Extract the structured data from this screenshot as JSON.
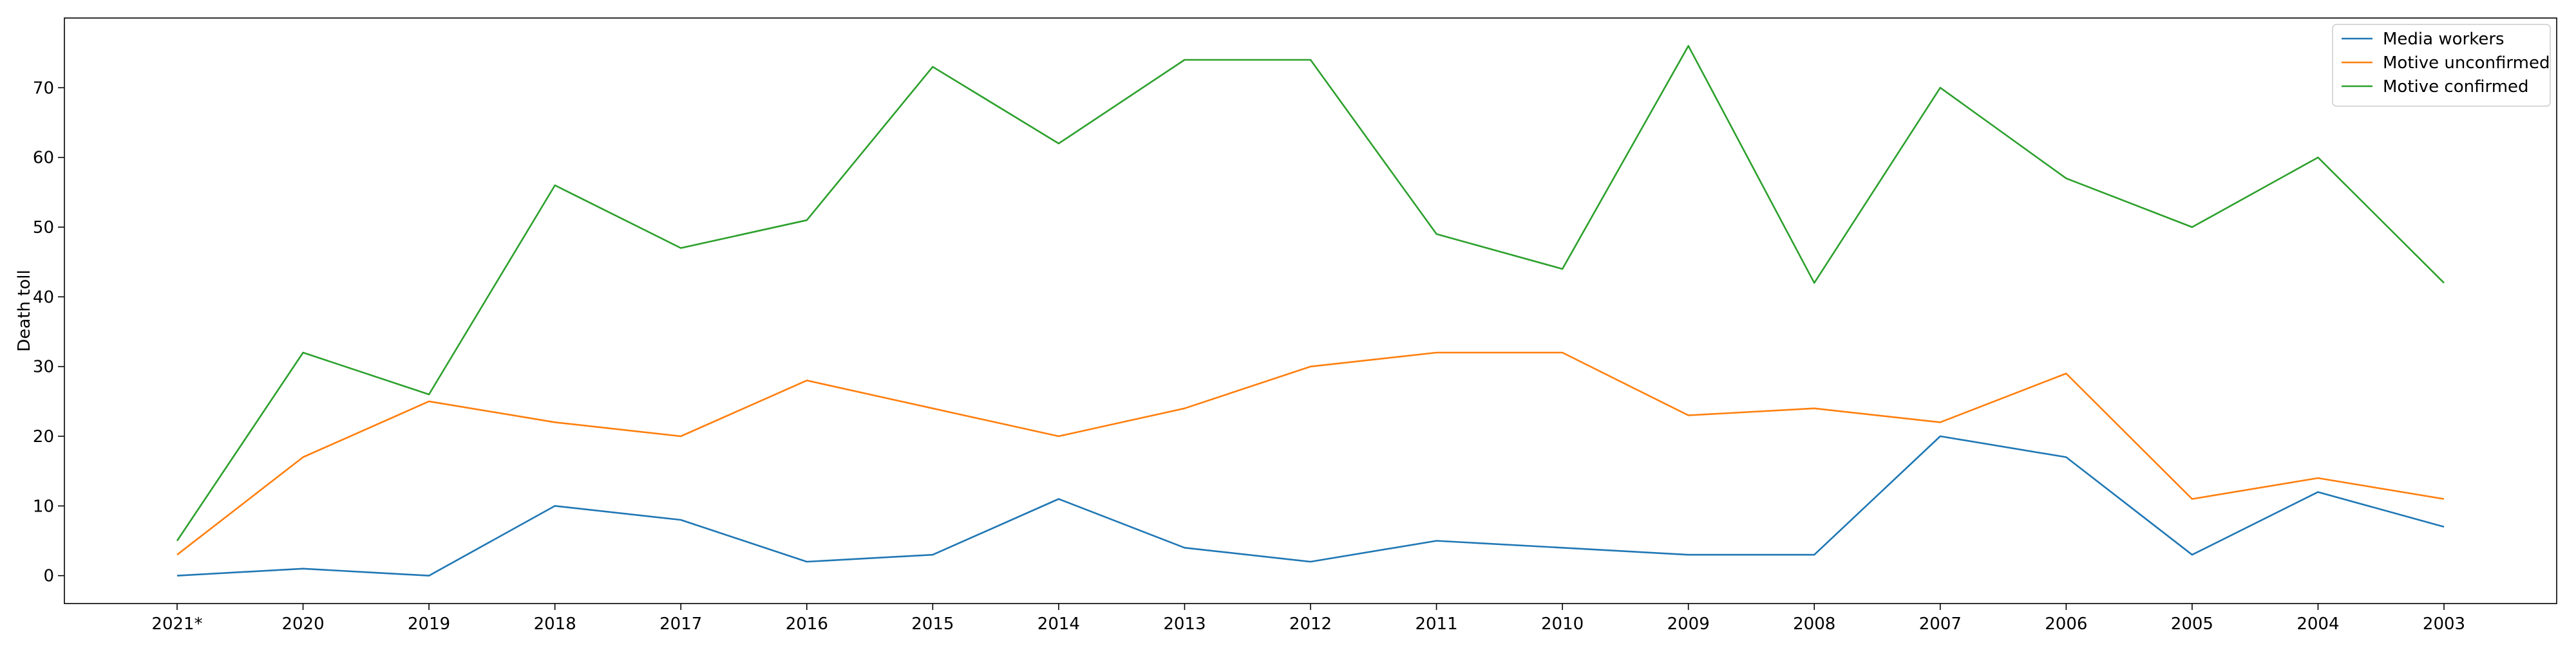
{
  "chart_data": {
    "type": "line",
    "title": "",
    "xlabel": "",
    "ylabel": "Death toll",
    "categories": [
      "2021*",
      "2020",
      "2019",
      "2018",
      "2017",
      "2016",
      "2015",
      "2014",
      "2013",
      "2012",
      "2011",
      "2010",
      "2009",
      "2008",
      "2007",
      "2006",
      "2005",
      "2004",
      "2003"
    ],
    "ylim": [
      -4,
      80
    ],
    "yticks": [
      0,
      10,
      20,
      30,
      40,
      50,
      60,
      70
    ],
    "grid": false,
    "legend_position": "top-right",
    "series": [
      {
        "name": "Media workers",
        "color": "#1f77b4",
        "values": [
          0,
          1,
          0,
          10,
          8,
          2,
          3,
          11,
          4,
          2,
          5,
          4,
          3,
          3,
          20,
          17,
          3,
          12,
          7
        ]
      },
      {
        "name": "Motive unconfirmed",
        "color": "#ff7f0e",
        "values": [
          3,
          17,
          25,
          22,
          20,
          28,
          24,
          20,
          24,
          30,
          32,
          32,
          23,
          24,
          22,
          29,
          11,
          14,
          11
        ]
      },
      {
        "name": "Motive confirmed",
        "color": "#2ca02c",
        "values": [
          5,
          32,
          26,
          56,
          47,
          51,
          73,
          62,
          74,
          74,
          49,
          44,
          76,
          42,
          70,
          57,
          50,
          60,
          42
        ]
      }
    ]
  }
}
